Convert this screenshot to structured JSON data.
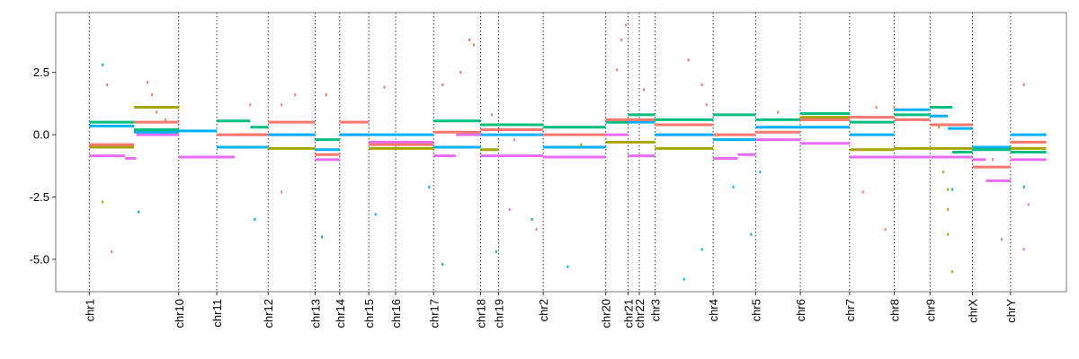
{
  "chart_data": {
    "type": "line",
    "title": "",
    "xlabel": "",
    "ylabel": "",
    "ylim": [
      -6.3,
      4.9
    ],
    "yticks": [
      {
        "value": 2.5,
        "label": "2.5"
      },
      {
        "value": 0,
        "label": "0.0"
      },
      {
        "value": -2.5,
        "label": "-2.5"
      },
      {
        "value": -5,
        "label": "-5.0"
      }
    ],
    "chromosomes": [
      {
        "label": "chr1",
        "start": 0,
        "end": 20
      },
      {
        "label": "chr10",
        "start": 20,
        "end": 28.5
      },
      {
        "label": "chr11",
        "start": 28.5,
        "end": 40
      },
      {
        "label": "chr12",
        "start": 40,
        "end": 50.5
      },
      {
        "label": "chr13",
        "start": 50.5,
        "end": 56
      },
      {
        "label": "chr14",
        "start": 56,
        "end": 62.5
      },
      {
        "label": "chr15",
        "start": 62.5,
        "end": 68.5
      },
      {
        "label": "chr16",
        "start": 68.5,
        "end": 77
      },
      {
        "label": "chr17",
        "start": 77,
        "end": 87.5
      },
      {
        "label": "chr18",
        "start": 87.5,
        "end": 91.5
      },
      {
        "label": "chr19",
        "start": 91.5,
        "end": 101.5
      },
      {
        "label": "chr2",
        "start": 101.5,
        "end": 115.5
      },
      {
        "label": "chr20",
        "start": 115.5,
        "end": 120.5
      },
      {
        "label": "chr21",
        "start": 120.5,
        "end": 123
      },
      {
        "label": "chr22",
        "start": 123,
        "end": 126.5
      },
      {
        "label": "chr3",
        "start": 126.5,
        "end": 139.5
      },
      {
        "label": "chr4",
        "start": 139.5,
        "end": 149
      },
      {
        "label": "chr5",
        "start": 149,
        "end": 159
      },
      {
        "label": "chr6",
        "start": 159,
        "end": 170
      },
      {
        "label": "chr7",
        "start": 170,
        "end": 180
      },
      {
        "label": "chr8",
        "start": 180,
        "end": 188
      },
      {
        "label": "chr9",
        "start": 188,
        "end": 197.5
      },
      {
        "label": "chrX",
        "start": 197.5,
        "end": 206
      },
      {
        "label": "chrY",
        "start": 206,
        "end": 214
      }
    ],
    "series_colors": [
      "#F8766D",
      "#A3A500",
      "#00BF7D",
      "#00B0F6",
      "#E76BF3"
    ],
    "segments": [
      {
        "s": 4,
        "x0": 0,
        "x1": 8,
        "y": -0.85
      },
      {
        "s": 4,
        "x0": 8,
        "x1": 10.5,
        "y": -0.95
      },
      {
        "s": 4,
        "x0": 10.5,
        "x1": 20,
        "y": 0.0
      },
      {
        "s": 4,
        "x0": 20,
        "x1": 28.5,
        "y": -0.9
      },
      {
        "s": 4,
        "x0": 28.5,
        "x1": 32.5,
        "y": -0.9
      },
      {
        "s": 4,
        "x0": 32.5,
        "x1": 40,
        "y": 0.0
      },
      {
        "s": 4,
        "x0": 40,
        "x1": 50.5,
        "y": 0.0
      },
      {
        "s": 4,
        "x0": 50.5,
        "x1": 56,
        "y": -1.0
      },
      {
        "s": 4,
        "x0": 56,
        "x1": 62.5,
        "y": 0.0
      },
      {
        "s": 4,
        "x0": 62.5,
        "x1": 68.5,
        "y": -0.3
      },
      {
        "s": 4,
        "x0": 68.5,
        "x1": 77,
        "y": -0.3
      },
      {
        "s": 4,
        "x0": 77,
        "x1": 82,
        "y": -0.85
      },
      {
        "s": 4,
        "x0": 82,
        "x1": 87.5,
        "y": 0.0
      },
      {
        "s": 4,
        "x0": 87.5,
        "x1": 91.5,
        "y": -0.85
      },
      {
        "s": 4,
        "x0": 91.5,
        "x1": 101.5,
        "y": -0.85
      },
      {
        "s": 4,
        "x0": 101.5,
        "x1": 115.5,
        "y": -0.9
      },
      {
        "s": 4,
        "x0": 115.5,
        "x1": 120.5,
        "y": 0.0
      },
      {
        "s": 4,
        "x0": 120.5,
        "x1": 126.5,
        "y": -0.85
      },
      {
        "s": 4,
        "x0": 126.5,
        "x1": 139.5,
        "y": 0.0
      },
      {
        "s": 4,
        "x0": 139.5,
        "x1": 145,
        "y": -0.95
      },
      {
        "s": 4,
        "x0": 145,
        "x1": 149,
        "y": -0.8
      },
      {
        "s": 4,
        "x0": 149,
        "x1": 159,
        "y": -0.2
      },
      {
        "s": 4,
        "x0": 159,
        "x1": 170,
        "y": -0.35
      },
      {
        "s": 4,
        "x0": 170,
        "x1": 180,
        "y": -0.9
      },
      {
        "s": 4,
        "x0": 180,
        "x1": 188,
        "y": -0.9
      },
      {
        "s": 4,
        "x0": 188,
        "x1": 197.5,
        "y": -0.9
      },
      {
        "s": 4,
        "x0": 197.5,
        "x1": 200.5,
        "y": -1.0
      },
      {
        "s": 4,
        "x0": 200.5,
        "x1": 206,
        "y": -1.85
      },
      {
        "s": 4,
        "x0": 206,
        "x1": 214,
        "y": -1.0
      },
      {
        "s": 3,
        "x0": 0,
        "x1": 10,
        "y": 0.35
      },
      {
        "s": 3,
        "x0": 10,
        "x1": 20,
        "y": 0.1
      },
      {
        "s": 3,
        "x0": 20,
        "x1": 28.5,
        "y": 0.15
      },
      {
        "s": 3,
        "x0": 28.5,
        "x1": 40,
        "y": -0.5
      },
      {
        "s": 3,
        "x0": 40,
        "x1": 50.5,
        "y": 0.0
      },
      {
        "s": 3,
        "x0": 50.5,
        "x1": 56,
        "y": -0.6
      },
      {
        "s": 3,
        "x0": 56,
        "x1": 62.5,
        "y": 0.0
      },
      {
        "s": 3,
        "x0": 62.5,
        "x1": 77,
        "y": 0.0
      },
      {
        "s": 3,
        "x0": 77,
        "x1": 87.5,
        "y": -0.5
      },
      {
        "s": 3,
        "x0": 87.5,
        "x1": 101.5,
        "y": 0.0
      },
      {
        "s": 3,
        "x0": 101.5,
        "x1": 115.5,
        "y": -0.5
      },
      {
        "s": 3,
        "x0": 115.5,
        "x1": 126.5,
        "y": 0.5
      },
      {
        "s": 3,
        "x0": 126.5,
        "x1": 139.5,
        "y": 0.0
      },
      {
        "s": 3,
        "x0": 139.5,
        "x1": 149,
        "y": -0.2
      },
      {
        "s": 3,
        "x0": 149,
        "x1": 159,
        "y": 0.3
      },
      {
        "s": 3,
        "x0": 159,
        "x1": 170,
        "y": 0.3
      },
      {
        "s": 3,
        "x0": 170,
        "x1": 180,
        "y": 0.0
      },
      {
        "s": 3,
        "x0": 180,
        "x1": 188,
        "y": 1.0
      },
      {
        "s": 3,
        "x0": 188,
        "x1": 192,
        "y": 0.75
      },
      {
        "s": 3,
        "x0": 192,
        "x1": 197.5,
        "y": 0.25
      },
      {
        "s": 3,
        "x0": 197.5,
        "x1": 206,
        "y": -0.5
      },
      {
        "s": 3,
        "x0": 206,
        "x1": 214,
        "y": 0.0
      },
      {
        "s": 2,
        "x0": 0,
        "x1": 10,
        "y": 0.5
      },
      {
        "s": 2,
        "x0": 10,
        "x1": 20,
        "y": 0.2
      },
      {
        "s": 2,
        "x0": 28.5,
        "x1": 36,
        "y": 0.55
      },
      {
        "s": 2,
        "x0": 36,
        "x1": 40,
        "y": 0.3
      },
      {
        "s": 2,
        "x0": 50.5,
        "x1": 56,
        "y": -0.2
      },
      {
        "s": 2,
        "x0": 77,
        "x1": 87.5,
        "y": 0.55
      },
      {
        "s": 2,
        "x0": 87.5,
        "x1": 101.5,
        "y": 0.4
      },
      {
        "s": 2,
        "x0": 101.5,
        "x1": 115.5,
        "y": 0.3
      },
      {
        "s": 2,
        "x0": 115.5,
        "x1": 120.5,
        "y": 0.5
      },
      {
        "s": 2,
        "x0": 120.5,
        "x1": 126.5,
        "y": 0.8
      },
      {
        "s": 2,
        "x0": 126.5,
        "x1": 139.5,
        "y": 0.6
      },
      {
        "s": 2,
        "x0": 139.5,
        "x1": 149,
        "y": 0.8
      },
      {
        "s": 2,
        "x0": 149,
        "x1": 159,
        "y": 0.6
      },
      {
        "s": 2,
        "x0": 159,
        "x1": 170,
        "y": 0.85
      },
      {
        "s": 2,
        "x0": 170,
        "x1": 180,
        "y": 0.5
      },
      {
        "s": 2,
        "x0": 180,
        "x1": 188,
        "y": 0.8
      },
      {
        "s": 2,
        "x0": 188,
        "x1": 193,
        "y": 1.1
      },
      {
        "s": 2,
        "x0": 193,
        "x1": 197.5,
        "y": -0.7
      },
      {
        "s": 2,
        "x0": 197.5,
        "x1": 206,
        "y": -0.6
      },
      {
        "s": 2,
        "x0": 206,
        "x1": 214,
        "y": -0.7
      },
      {
        "s": 1,
        "x0": 0,
        "x1": 10,
        "y": -0.5
      },
      {
        "s": 1,
        "x0": 10,
        "x1": 20,
        "y": 1.1
      },
      {
        "s": 1,
        "x0": 40,
        "x1": 50.5,
        "y": -0.55
      },
      {
        "s": 1,
        "x0": 62.5,
        "x1": 77,
        "y": -0.55
      },
      {
        "s": 1,
        "x0": 87.5,
        "x1": 91.5,
        "y": -0.6
      },
      {
        "s": 1,
        "x0": 115.5,
        "x1": 126.5,
        "y": -0.3
      },
      {
        "s": 1,
        "x0": 126.5,
        "x1": 139.5,
        "y": -0.55
      },
      {
        "s": 1,
        "x0": 159,
        "x1": 170,
        "y": 0.7
      },
      {
        "s": 1,
        "x0": 170,
        "x1": 180,
        "y": -0.6
      },
      {
        "s": 1,
        "x0": 180,
        "x1": 188,
        "y": -0.55
      },
      {
        "s": 1,
        "x0": 188,
        "x1": 197.5,
        "y": -0.55
      },
      {
        "s": 1,
        "x0": 206,
        "x1": 214,
        "y": -0.55
      },
      {
        "s": 0,
        "x0": 0,
        "x1": 10,
        "y": -0.4
      },
      {
        "s": 0,
        "x0": 10,
        "x1": 20,
        "y": 0.5
      },
      {
        "s": 0,
        "x0": 28.5,
        "x1": 40,
        "y": 0.0
      },
      {
        "s": 0,
        "x0": 40,
        "x1": 50.5,
        "y": 0.5
      },
      {
        "s": 0,
        "x0": 50.5,
        "x1": 56,
        "y": -0.8
      },
      {
        "s": 0,
        "x0": 56,
        "x1": 62.5,
        "y": 0.5
      },
      {
        "s": 0,
        "x0": 62.5,
        "x1": 77,
        "y": -0.4
      },
      {
        "s": 0,
        "x0": 77,
        "x1": 87.5,
        "y": 0.1
      },
      {
        "s": 0,
        "x0": 87.5,
        "x1": 101.5,
        "y": 0.2
      },
      {
        "s": 0,
        "x0": 101.5,
        "x1": 115.5,
        "y": 0.0
      },
      {
        "s": 0,
        "x0": 115.5,
        "x1": 126.5,
        "y": 0.6
      },
      {
        "s": 0,
        "x0": 126.5,
        "x1": 139.5,
        "y": 0.4
      },
      {
        "s": 0,
        "x0": 139.5,
        "x1": 149,
        "y": 0.0
      },
      {
        "s": 0,
        "x0": 149,
        "x1": 159,
        "y": 0.1
      },
      {
        "s": 0,
        "x0": 159,
        "x1": 170,
        "y": 0.6
      },
      {
        "s": 0,
        "x0": 170,
        "x1": 180,
        "y": 0.7
      },
      {
        "s": 0,
        "x0": 180,
        "x1": 188,
        "y": 0.6
      },
      {
        "s": 0,
        "x0": 188,
        "x1": 197.5,
        "y": 0.4
      },
      {
        "s": 0,
        "x0": 197.5,
        "x1": 206,
        "y": -1.3
      },
      {
        "s": 0,
        "x0": 206,
        "x1": 214,
        "y": -0.3
      }
    ],
    "points": [
      {
        "s": 0,
        "x": 4,
        "y": 2.0
      },
      {
        "s": 0,
        "x": 13,
        "y": 2.1
      },
      {
        "s": 0,
        "x": 14,
        "y": 1.6
      },
      {
        "s": 0,
        "x": 15,
        "y": 0.9
      },
      {
        "s": 0,
        "x": 17,
        "y": 0.6
      },
      {
        "s": 0,
        "x": 36,
        "y": 1.2
      },
      {
        "s": 0,
        "x": 43,
        "y": 1.2
      },
      {
        "s": 0,
        "x": 46,
        "y": 1.6
      },
      {
        "s": 0,
        "x": 53,
        "y": 1.6
      },
      {
        "s": 0,
        "x": 66,
        "y": 1.9
      },
      {
        "s": 0,
        "x": 79,
        "y": 2.0
      },
      {
        "s": 0,
        "x": 83,
        "y": 2.5
      },
      {
        "s": 0,
        "x": 85,
        "y": 3.8
      },
      {
        "s": 0,
        "x": 86,
        "y": 3.6
      },
      {
        "s": 0,
        "x": 90,
        "y": 0.8
      },
      {
        "s": 0,
        "x": 95,
        "y": -0.2
      },
      {
        "s": 0,
        "x": 118,
        "y": 2.6
      },
      {
        "s": 0,
        "x": 119,
        "y": 3.8
      },
      {
        "s": 0,
        "x": 120,
        "y": 4.4
      },
      {
        "s": 0,
        "x": 124,
        "y": 1.8
      },
      {
        "s": 0,
        "x": 134,
        "y": 3.0
      },
      {
        "s": 0,
        "x": 137,
        "y": 2.0
      },
      {
        "s": 0,
        "x": 138,
        "y": 1.2
      },
      {
        "s": 0,
        "x": 154,
        "y": 0.9
      },
      {
        "s": 0,
        "x": 172,
        "y": -0.6
      },
      {
        "s": 0,
        "x": 176,
        "y": 1.1
      },
      {
        "s": 0,
        "x": 180,
        "y": 1.1
      },
      {
        "s": 0,
        "x": 202,
        "y": -1.0
      },
      {
        "s": 0,
        "x": 204,
        "y": -4.2
      },
      {
        "s": 0,
        "x": 209,
        "y": 2.0
      },
      {
        "s": 0,
        "x": 5,
        "y": -4.7
      },
      {
        "s": 0,
        "x": 100,
        "y": -3.8
      },
      {
        "s": 0,
        "x": 43,
        "y": -2.3
      },
      {
        "s": 0,
        "x": 173,
        "y": -2.3
      },
      {
        "s": 0,
        "x": 178,
        "y": -3.8
      },
      {
        "s": 1,
        "x": 3,
        "y": -2.7
      },
      {
        "s": 1,
        "x": 191,
        "y": -1.5
      },
      {
        "s": 1,
        "x": 192,
        "y": -3.0
      },
      {
        "s": 1,
        "x": 192,
        "y": -4.0
      },
      {
        "s": 1,
        "x": 193,
        "y": -5.5
      },
      {
        "s": 1,
        "x": 192,
        "y": -2.2
      },
      {
        "s": 1,
        "x": 190,
        "y": 0.3
      },
      {
        "s": 1,
        "x": 110,
        "y": -0.4
      },
      {
        "s": 2,
        "x": 3,
        "y": 2.8
      },
      {
        "s": 2,
        "x": 79,
        "y": -5.2
      },
      {
        "s": 2,
        "x": 91,
        "y": -4.7
      },
      {
        "s": 2,
        "x": 99,
        "y": -3.4
      },
      {
        "s": 2,
        "x": 193,
        "y": -2.2
      },
      {
        "s": 2,
        "x": 209,
        "y": -2.1
      },
      {
        "s": 3,
        "x": 11,
        "y": -3.1
      },
      {
        "s": 3,
        "x": 37,
        "y": -3.4
      },
      {
        "s": 3,
        "x": 52,
        "y": -4.1
      },
      {
        "s": 3,
        "x": 64,
        "y": -3.2
      },
      {
        "s": 3,
        "x": 76,
        "y": -2.1
      },
      {
        "s": 3,
        "x": 107,
        "y": -5.3
      },
      {
        "s": 3,
        "x": 133,
        "y": -5.8
      },
      {
        "s": 3,
        "x": 137,
        "y": -4.6
      },
      {
        "s": 3,
        "x": 148,
        "y": -4.0
      },
      {
        "s": 3,
        "x": 144,
        "y": -2.1
      },
      {
        "s": 3,
        "x": 150,
        "y": -1.5
      },
      {
        "s": 4,
        "x": 94,
        "y": -3.0
      },
      {
        "s": 4,
        "x": 209,
        "y": -4.6
      },
      {
        "s": 4,
        "x": 210,
        "y": -2.8
      }
    ]
  }
}
